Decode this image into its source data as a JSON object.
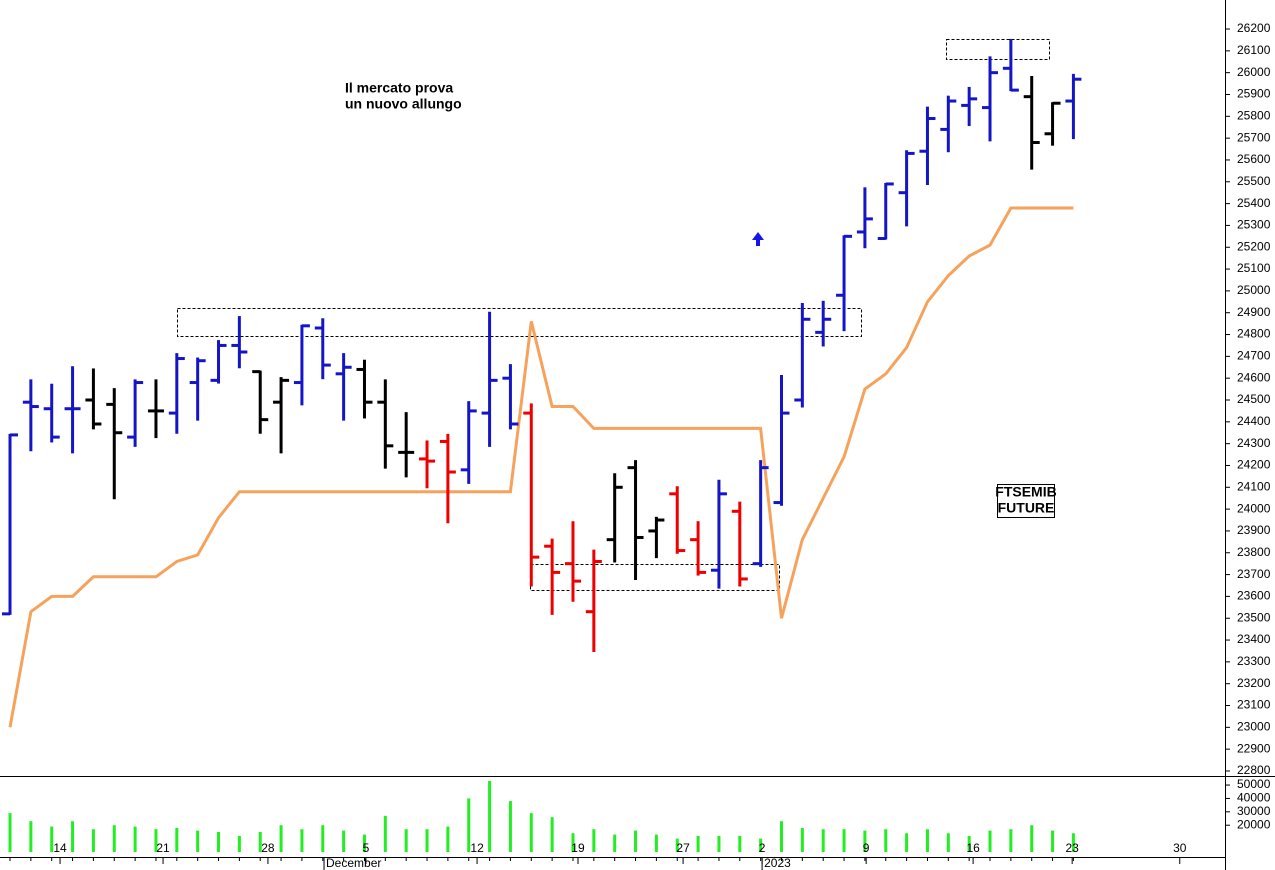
{
  "chart_data": [
    {
      "type": "ohlc",
      "annotation": [
        "Il mercato prova",
        "un nuovo allungo"
      ],
      "annotation_color": "#1a1acc",
      "label_box": [
        "FTSEMIB",
        "FUTURE"
      ],
      "xlim": [
        -0.48,
        58.27
      ],
      "ylim": [
        22777,
        26333
      ],
      "yticks": [
        22800,
        22900,
        23000,
        23100,
        23200,
        23300,
        23400,
        23500,
        23600,
        23700,
        23800,
        23900,
        24000,
        24100,
        24200,
        24300,
        24400,
        24500,
        24600,
        24700,
        24800,
        24900,
        25000,
        25100,
        25200,
        25300,
        25400,
        25500,
        25600,
        25700,
        25800,
        25900,
        26000,
        26100,
        26200
      ],
      "open": [
        23520,
        24490,
        24460,
        24460,
        24500,
        24480,
        24330,
        24450,
        24440,
        24580,
        24590,
        24750,
        24630,
        24490,
        24580,
        24830,
        24620,
        24640,
        24490,
        24260,
        24230,
        24310,
        24180,
        24440,
        24600,
        24440,
        23830,
        23750,
        23530,
        23860,
        24190,
        23900,
        24070,
        23860,
        23720,
        23990,
        23750,
        24030,
        24500,
        24810,
        24980,
        25270,
        25240,
        25450,
        25640,
        25740,
        25850,
        25840,
        26020,
        25890,
        25720,
        25870
      ],
      "high": [
        24340,
        24590,
        24570,
        24650,
        24640,
        24550,
        24590,
        24590,
        24710,
        24690,
        24770,
        24880,
        24630,
        24600,
        24840,
        24870,
        24710,
        24680,
        24590,
        24440,
        24310,
        24340,
        24490,
        24900,
        24660,
        24480,
        23860,
        23940,
        23810,
        24160,
        24220,
        23960,
        24100,
        23940,
        24130,
        24030,
        24220,
        24610,
        24940,
        24950,
        25250,
        25470,
        25490,
        25640,
        25840,
        25890,
        25930,
        26070,
        26150,
        25980,
        25860,
        25990
      ],
      "low": [
        23520,
        24270,
        24310,
        24260,
        24370,
        24050,
        24290,
        24330,
        24350,
        24410,
        24580,
        24650,
        24350,
        24260,
        24480,
        24600,
        24410,
        24420,
        24190,
        24150,
        24100,
        23940,
        24120,
        24290,
        24370,
        23650,
        23520,
        23580,
        23350,
        23760,
        23680,
        23780,
        23800,
        23700,
        23640,
        23650,
        23740,
        24020,
        24470,
        24750,
        24820,
        25200,
        25240,
        25300,
        25490,
        25640,
        25760,
        25690,
        25920,
        25560,
        25670,
        25700
      ],
      "close": [
        24340,
        24470,
        24330,
        24460,
        24390,
        24350,
        24580,
        24450,
        24690,
        24680,
        24750,
        24720,
        24410,
        24590,
        24840,
        24660,
        24650,
        24490,
        24290,
        24260,
        24220,
        24170,
        24450,
        24590,
        24390,
        23780,
        23710,
        23670,
        23760,
        24100,
        23870,
        23950,
        23810,
        23710,
        24070,
        23680,
        24190,
        24440,
        24870,
        24870,
        25250,
        25330,
        25490,
        25630,
        25790,
        25870,
        25880,
        26000,
        25920,
        25680,
        25860,
        25970
      ],
      "colors": [
        "#1515c8",
        "#1515c8",
        "#1515c8",
        "#1515c8",
        "#000000",
        "#000000",
        "#1515c8",
        "#000000",
        "#1515c8",
        "#1515c8",
        "#1515c8",
        "#1515c8",
        "#000000",
        "#000000",
        "#1515c8",
        "#1515c8",
        "#1515c8",
        "#000000",
        "#000000",
        "#000000",
        "#ee0000",
        "#ee0000",
        "#1515c8",
        "#1515c8",
        "#1515c8",
        "#ee0000",
        "#ee0000",
        "#ee0000",
        "#ee0000",
        "#000000",
        "#000000",
        "#000000",
        "#ee0000",
        "#ee0000",
        "#1515c8",
        "#ee0000",
        "#1515c8",
        "#1515c8",
        "#1515c8",
        "#1515c8",
        "#1515c8",
        "#1515c8",
        "#1515c8",
        "#1515c8",
        "#1515c8",
        "#1515c8",
        "#1515c8",
        "#1515c8",
        "#1515c8",
        "#000000",
        "#000000",
        "#1515c8"
      ],
      "stop_line": {
        "color": "#f5a35c",
        "values": [
          23000,
          23530,
          23600,
          23600,
          23690,
          23690,
          23690,
          23690,
          23760,
          23790,
          23960,
          24080,
          24080,
          24080,
          24080,
          24080,
          24080,
          24080,
          24080,
          24080,
          24080,
          24080,
          24080,
          24080,
          24080,
          24860,
          24470,
          24470,
          24370,
          24370,
          24370,
          24370,
          24370,
          24370,
          24370,
          24370,
          24370,
          23500,
          23860,
          24050,
          24240,
          24550,
          24620,
          24740,
          24950,
          25070,
          25160,
          25210,
          25380,
          25380,
          25380,
          25380
        ]
      }
    },
    {
      "type": "bar",
      "color": "#22ee22",
      "xlim": [
        -0.48,
        58.27
      ],
      "ylim": [
        0,
        56000
      ],
      "yticks": [
        20000,
        30000,
        40000,
        50000
      ],
      "values": [
        29000,
        23000,
        19000,
        23000,
        17000,
        20000,
        19000,
        17000,
        18000,
        16000,
        15000,
        12000,
        15000,
        20000,
        17000,
        20000,
        16000,
        13000,
        27000,
        17000,
        17000,
        19000,
        40000,
        53000,
        38000,
        29000,
        26000,
        14000,
        17000,
        13000,
        16000,
        13000,
        10000,
        12000,
        12000,
        12000,
        10000,
        23000,
        18000,
        17000,
        17000,
        16000,
        17000,
        14000,
        17000,
        14000,
        12000,
        16000,
        17000,
        20000,
        16000,
        14000
      ],
      "xticks": [
        {
          "value": 2.4,
          "label": "14"
        },
        {
          "value": 7.34,
          "label": "21"
        },
        {
          "value": 12.37,
          "label": "28"
        },
        {
          "value": 17.07,
          "label": "5"
        },
        {
          "value": 22.4,
          "label": "12"
        },
        {
          "value": 27.24,
          "label": "19"
        },
        {
          "value": 32.28,
          "label": "27"
        },
        {
          "value": 36.07,
          "label": "2"
        },
        {
          "value": 41.06,
          "label": "9"
        },
        {
          "value": 46.19,
          "label": "16"
        },
        {
          "value": 50.94,
          "label": "23"
        },
        {
          "value": 56.1,
          "label": "30"
        }
      ],
      "period_ticks": [
        {
          "value": 15.06,
          "label": "December"
        },
        {
          "value": 36.07,
          "label": "2023"
        }
      ]
    }
  ]
}
